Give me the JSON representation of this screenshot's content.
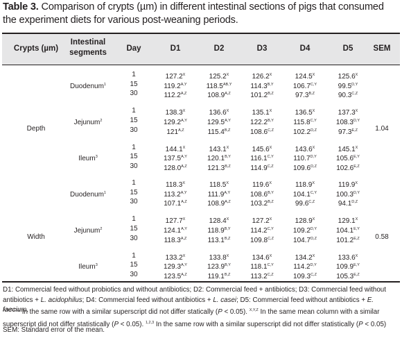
{
  "caption": {
    "label": "Table 3.",
    "text": " Comparison of crypts (µm) in different intestinal sections of pigs that consumed the experiment diets for various post-weaning periods."
  },
  "headers": {
    "crypts": "Crypts (µm)",
    "segments": [
      "Intestinal",
      "segments"
    ],
    "day": "Day",
    "d1": "D1",
    "d2": "D2",
    "d3": "D3",
    "d4": "D4",
    "d5": "D5",
    "sem": "SEM"
  },
  "groups": [
    {
      "measure": "Depth",
      "sem": "1.04",
      "segments": [
        {
          "name": "Duodenum",
          "sup": "1",
          "rows": [
            {
              "day": "1",
              "cells": [
                [
                  "127.2",
                  "X"
                ],
                [
                  "125.2",
                  "X"
                ],
                [
                  "126.2",
                  "X"
                ],
                [
                  "124.5",
                  "X"
                ],
                [
                  "125.6",
                  "X"
                ]
              ]
            },
            {
              "day": "15",
              "cells": [
                [
                  "119.2",
                  "A,Y"
                ],
                [
                  "118.5",
                  "AB,Y"
                ],
                [
                  "114.3",
                  "B,Y"
                ],
                [
                  "106.7",
                  "C,Y"
                ],
                [
                  "99.5",
                  "D,Y"
                ]
              ]
            },
            {
              "day": "30",
              "cells": [
                [
                  "112.2",
                  "A,Z"
                ],
                [
                  "108.9",
                  "A,Z"
                ],
                [
                  "101.2",
                  "B,Z"
                ],
                [
                  "97.3",
                  "B,Z"
                ],
                [
                  "90.3",
                  "C,Z"
                ]
              ]
            }
          ]
        },
        {
          "name": "Jejunum",
          "sup": "2",
          "rows": [
            {
              "day": "1",
              "cells": [
                [
                  "138.3",
                  "X"
                ],
                [
                  "136.6",
                  "X"
                ],
                [
                  "135.1",
                  "X"
                ],
                [
                  "136.5",
                  "X"
                ],
                [
                  "137.3",
                  "X"
                ]
              ]
            },
            {
              "day": "15",
              "cells": [
                [
                  "129.2",
                  "A,Y"
                ],
                [
                  "129.5",
                  "A,Y"
                ],
                [
                  "122.2",
                  "B,Y"
                ],
                [
                  "115.8",
                  "C,Y"
                ],
                [
                  "108.3",
                  "D,Y"
                ]
              ]
            },
            {
              "day": "30",
              "cells": [
                [
                  "121",
                  "A,Z"
                ],
                [
                  "115.4",
                  "B,Z"
                ],
                [
                  "108.6",
                  "C,Z"
                ],
                [
                  "102.2",
                  "D,Z"
                ],
                [
                  "97.3",
                  "E,Z"
                ]
              ]
            }
          ]
        },
        {
          "name": "Ileum",
          "sup": "3",
          "rows": [
            {
              "day": "1",
              "cells": [
                [
                  "144.1",
                  "X"
                ],
                [
                  "143.1",
                  "X"
                ],
                [
                  "145.6",
                  "X"
                ],
                [
                  "143.6",
                  "X"
                ],
                [
                  "145.1",
                  "X"
                ]
              ]
            },
            {
              "day": "15",
              "cells": [
                [
                  "137.5",
                  "A,Y"
                ],
                [
                  "120.1",
                  "B,Y"
                ],
                [
                  "116.1",
                  "C,Y"
                ],
                [
                  "110.7",
                  "D,Y"
                ],
                [
                  "105.6",
                  "E,Y"
                ]
              ]
            },
            {
              "day": "30",
              "cells": [
                [
                  "128.0",
                  "A,Z"
                ],
                [
                  "121.3",
                  "B,Z"
                ],
                [
                  "114.9",
                  "C,Z"
                ],
                [
                  "109.6",
                  "D,Z"
                ],
                [
                  "102.6",
                  "E,Z"
                ]
              ]
            }
          ]
        }
      ]
    },
    {
      "measure": "Width",
      "sem": "0.58",
      "segments": [
        {
          "name": "Duodenum",
          "sup": "1",
          "rows": [
            {
              "day": "1",
              "cells": [
                [
                  "118.3",
                  "X"
                ],
                [
                  "118.5",
                  "X"
                ],
                [
                  "119.6",
                  "X"
                ],
                [
                  "118.9",
                  "X"
                ],
                [
                  "119.9",
                  "X"
                ]
              ]
            },
            {
              "day": "15",
              "cells": [
                [
                  "113.2",
                  "A,Y"
                ],
                [
                  "111.9",
                  "A,Y"
                ],
                [
                  "108.6",
                  "B,Y"
                ],
                [
                  "104.1",
                  "C,Y"
                ],
                [
                  "100.3",
                  "D,Y"
                ]
              ]
            },
            {
              "day": "30",
              "cells": [
                [
                  "107.1",
                  "A,Z"
                ],
                [
                  "108.9",
                  "A,Z"
                ],
                [
                  "103.2",
                  "B,Z"
                ],
                [
                  "99.6",
                  "C,Z"
                ],
                [
                  "94.1",
                  "D,Z"
                ]
              ]
            }
          ]
        },
        {
          "name": "Jejunum",
          "sup": "2",
          "rows": [
            {
              "day": "1",
              "cells": [
                [
                  "127.7",
                  "X"
                ],
                [
                  "128.4",
                  "X"
                ],
                [
                  "127.2",
                  "X"
                ],
                [
                  "128.9",
                  "X"
                ],
                [
                  "129.1",
                  "X"
                ]
              ]
            },
            {
              "day": "15",
              "cells": [
                [
                  "124.1",
                  "A,Y"
                ],
                [
                  "118.9",
                  "B,Y"
                ],
                [
                  "114.2",
                  "C,Y"
                ],
                [
                  "109.2",
                  "D,Y"
                ],
                [
                  "104.1",
                  "E,Y"
                ]
              ]
            },
            {
              "day": "30",
              "cells": [
                [
                  "118.3",
                  "A,Z"
                ],
                [
                  "113.1",
                  "B,Z"
                ],
                [
                  "109.8",
                  "C,Z"
                ],
                [
                  "104.7",
                  "D,Z"
                ],
                [
                  "101.2",
                  "E,Z"
                ]
              ]
            }
          ]
        },
        {
          "name": "Ileum",
          "sup": "3",
          "rows": [
            {
              "day": "1",
              "cells": [
                [
                  "133.2",
                  "X"
                ],
                [
                  "133.8",
                  "X"
                ],
                [
                  "134.6",
                  "X"
                ],
                [
                  "134.2",
                  "X"
                ],
                [
                  "133.6",
                  "X"
                ]
              ]
            },
            {
              "day": "15",
              "cells": [
                [
                  "129.3",
                  "A,Y"
                ],
                [
                  "123.9",
                  "B,Y"
                ],
                [
                  "118.1",
                  "C,Y"
                ],
                [
                  "114.2",
                  "D,Y"
                ],
                [
                  "109.9",
                  "E,Y"
                ]
              ]
            },
            {
              "day": "30",
              "cells": [
                [
                  "123.5",
                  "A,Z"
                ],
                [
                  "119.1",
                  "B,Z"
                ],
                [
                  "113.2",
                  "C,Z"
                ],
                [
                  "109.3",
                  "C,Z"
                ],
                [
                  "105.3",
                  "E,Z"
                ]
              ]
            }
          ]
        }
      ]
    }
  ],
  "footnotes": {
    "line1_parts": [
      {
        "t": "D1: Commercial feed without probiotics and without antibiotics; D2: Commercial feed + antibiotics; D3: Commercial feed without antibiotics + ",
        "i": false
      },
      {
        "t": "L. acidophilus",
        "i": true
      },
      {
        "t": "; D4: Commercial feed without antibiotics + ",
        "i": false
      },
      {
        "t": "L. casei",
        "i": true
      },
      {
        "t": "; D5: Commercial feed without antibiotics + ",
        "i": false
      },
      {
        "t": "E. faecium",
        "i": true
      },
      {
        "t": ".",
        "i": false
      }
    ],
    "line2_parts": [
      {
        "t": "A,B,C,D,E",
        "s": true
      },
      {
        "t": " In the same row with a similar superscript did not differ statically (",
        "s": false
      },
      {
        "t": "P",
        "i": true
      },
      {
        "t": " < 0.05). ",
        "s": false
      },
      {
        "t": "X,Y,Z",
        "s": true
      },
      {
        "t": " In the same mean column with a similar superscript did not differ statistically (",
        "s": false
      },
      {
        "t": "P",
        "i": true
      },
      {
        "t": " < 0.05). ",
        "s": false
      },
      {
        "t": "1,2,3",
        "s": true
      },
      {
        "t": " In the same row with a similar superscript did not differ statistically (",
        "s": false
      },
      {
        "t": "P",
        "i": true
      },
      {
        "t": " < 0.05)",
        "s": false
      }
    ],
    "sem": "SEM: Standard error of the mean."
  }
}
